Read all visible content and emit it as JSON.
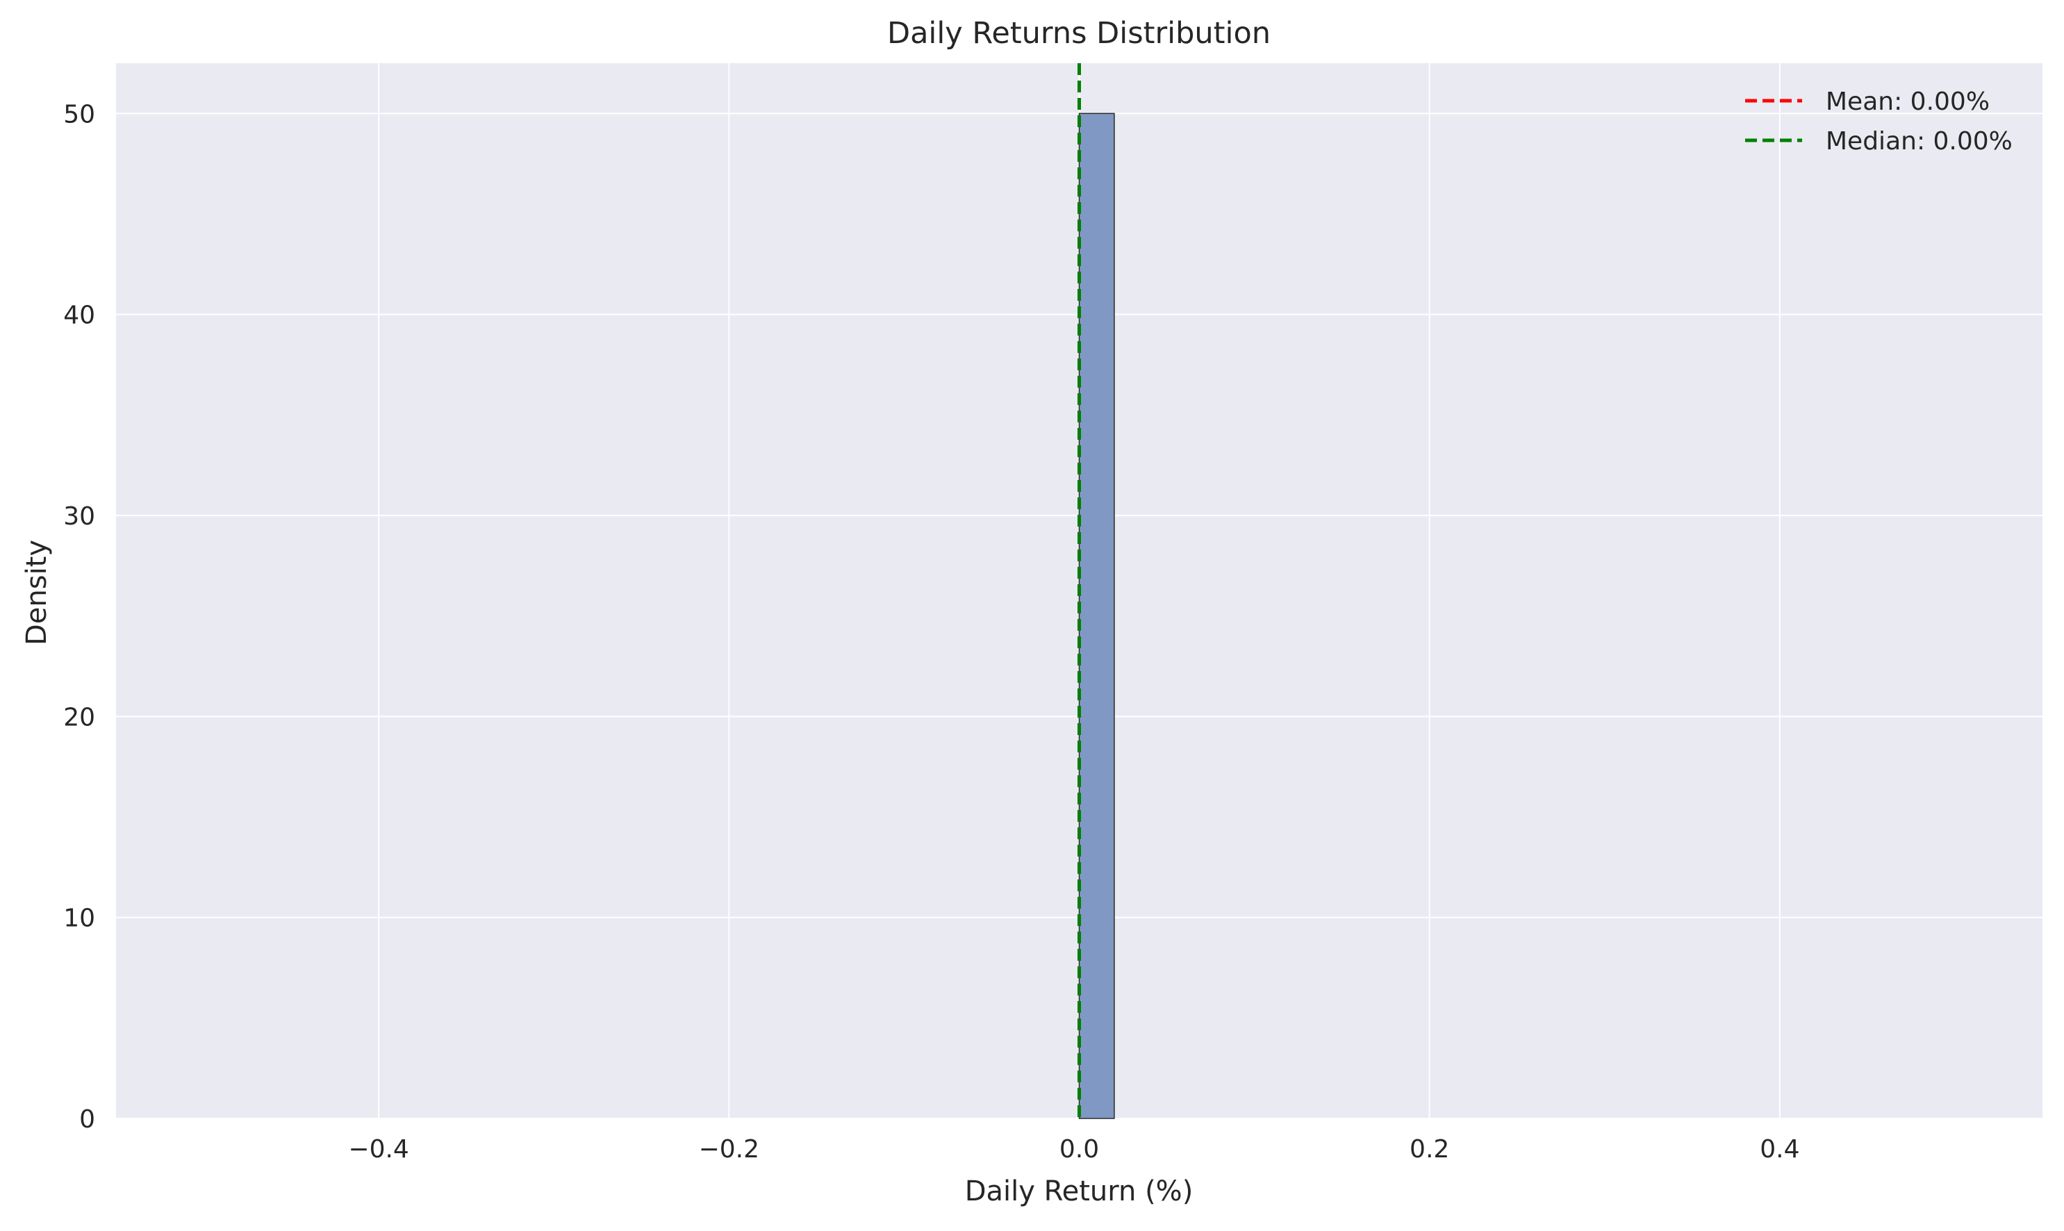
{
  "chart_data": {
    "type": "bar",
    "title": "Daily Returns Distribution",
    "xlabel": "Daily Return (%)",
    "ylabel": "Density",
    "xlim": [
      -0.55,
      0.55
    ],
    "ylim": [
      0,
      52.5
    ],
    "x_ticks": [
      -0.4,
      -0.2,
      0.0,
      0.2,
      0.4
    ],
    "x_tick_labels": [
      "−0.4",
      "−0.2",
      "0.0",
      "0.2",
      "0.4"
    ],
    "y_ticks": [
      0,
      10,
      20,
      30,
      40,
      50
    ],
    "y_tick_labels": [
      "0",
      "10",
      "20",
      "30",
      "40",
      "50"
    ],
    "grid": true,
    "legend_position": "top-right",
    "bins": [
      {
        "x0": 0.0,
        "x1": 0.02,
        "value": 50
      }
    ],
    "reference_lines": [
      {
        "name": "Mean",
        "label": "Mean: 0.00%",
        "x": 0.0,
        "color": "#ff0000",
        "style": "dashed"
      },
      {
        "name": "Median",
        "label": "Median: 0.00%",
        "x": 0.0,
        "color": "#008000",
        "style": "dashed"
      }
    ],
    "colors": {
      "plot_background": "#eaeaf2",
      "bar_fill": "#7f98c4",
      "bar_edge": "#2b2b2b",
      "grid": "#ffffff"
    }
  }
}
